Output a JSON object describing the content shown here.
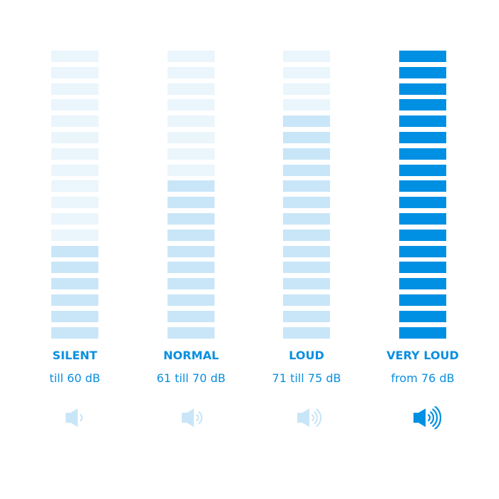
{
  "colors": {
    "inactive": "#eaf5fc",
    "active_light": "#c9e6f8",
    "active_strong": "#0090e3",
    "text": "#0a8fe0"
  },
  "segments_total": 18,
  "levels": [
    {
      "label": "SILENT",
      "range": "till 60 dB",
      "active_segments": 6,
      "strong": false,
      "icon": "speaker-1-wave-icon",
      "waves": 1
    },
    {
      "label": "NORMAL",
      "range": "61 till 70 dB",
      "active_segments": 10,
      "strong": false,
      "icon": "speaker-2-waves-icon",
      "waves": 2
    },
    {
      "label": "LOUD",
      "range": "71 till 75 dB",
      "active_segments": 14,
      "strong": false,
      "icon": "speaker-3-waves-icon",
      "waves": 3
    },
    {
      "label": "VERY LOUD",
      "range": "from 76 dB",
      "active_segments": 18,
      "strong": true,
      "icon": "speaker-4-waves-icon",
      "waves": 4
    }
  ]
}
